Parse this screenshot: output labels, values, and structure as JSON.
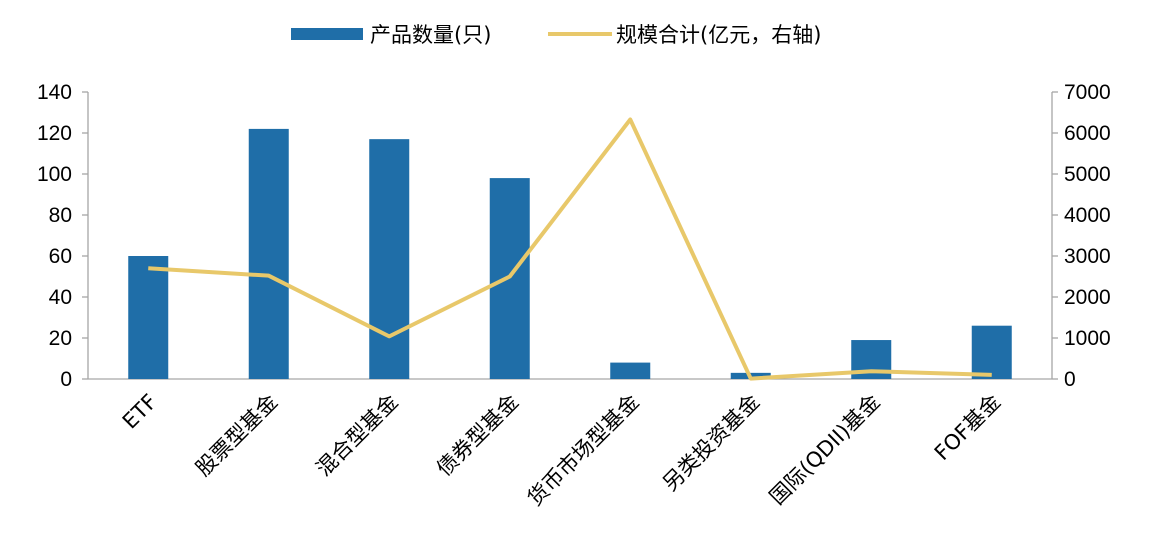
{
  "chart_data": {
    "type": "bar",
    "categories": [
      "ETF",
      "股票型基金",
      "混合型基金",
      "债券型基金",
      "货币市场型基金",
      "另类投资基金",
      "国际(QDII)基金",
      "FOF基金"
    ],
    "series": [
      {
        "name": "产品数量(只)",
        "type": "bar",
        "axis": "left",
        "color": "#1f6ea8",
        "values": [
          60,
          122,
          117,
          98,
          8,
          3,
          19,
          26
        ]
      },
      {
        "name": "规模合计(亿元，右轴)",
        "type": "line",
        "axis": "right",
        "color": "#e8c86a",
        "values": [
          2700,
          2520,
          1040,
          2500,
          6330,
          10,
          190,
          100
        ]
      }
    ],
    "y_left": {
      "ticks": [
        "0",
        "20",
        "40",
        "60",
        "80",
        "100",
        "120",
        "140"
      ],
      "ylim": [
        0,
        140
      ]
    },
    "y_right": {
      "ticks": [
        "0",
        "1000",
        "2000",
        "3000",
        "4000",
        "5000",
        "6000",
        "7000"
      ],
      "ylim": [
        0,
        7000
      ]
    },
    "legend_placement": "top-center",
    "grid": false
  }
}
